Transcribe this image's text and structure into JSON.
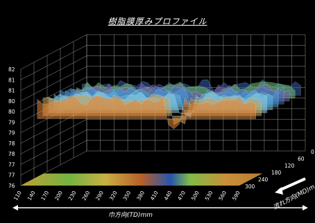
{
  "chart_data": {
    "type": "surface",
    "title": "樹脂膜厚みプロファイル",
    "xlabel": "巾方向(TD)mm",
    "ylabel": "流れ方向(MD)m",
    "zlim": [
      76,
      82
    ],
    "z_ticks": [
      "82",
      "81",
      "81",
      "80",
      "80",
      "79",
      "79",
      "78",
      "78",
      "77",
      "77",
      "76"
    ],
    "x_ticks": [
      "110",
      "140",
      "170",
      "200",
      "230",
      "260",
      "290",
      "320",
      "350",
      "380",
      "410",
      "440",
      "470",
      "500",
      "530",
      "560",
      "590"
    ],
    "y_ticks": [
      "0",
      "60",
      "120",
      "180",
      "240",
      "300"
    ],
    "grid": true,
    "palette": [
      "#1a3fa8",
      "#2f7fd1",
      "#56c4e6",
      "#7fd35a",
      "#d8d24a",
      "#e88a3a",
      "#c0473a"
    ]
  }
}
